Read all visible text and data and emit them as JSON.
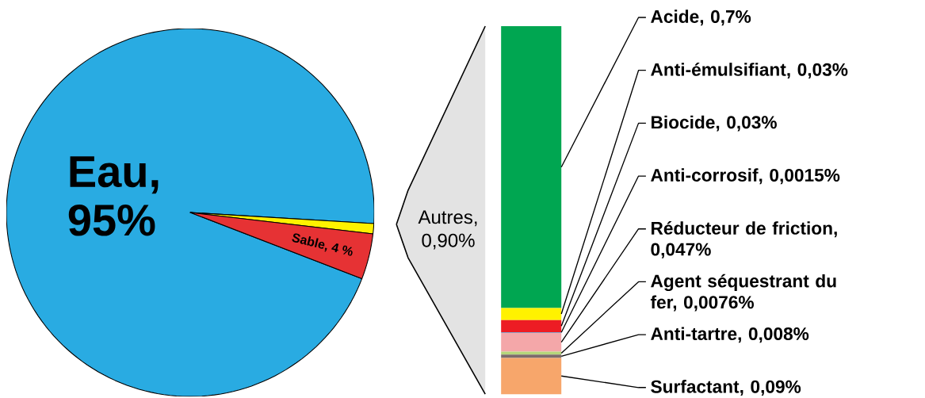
{
  "chart_data": [
    {
      "type": "pie",
      "categories": [
        "Eau, 95%",
        "Autres, 0,90%",
        "Sable, 4 %"
      ],
      "values": [
        95,
        0.9,
        4
      ],
      "colors": [
        "#29abe2",
        "#fff200",
        "#e63234"
      ]
    },
    {
      "type": "bar",
      "stacked": true,
      "categories": [
        null
      ],
      "series": [
        {
          "color": "#f7a66b",
          "values": [
            0.09
          ],
          "value_labels": [
            "Surfactant, 0,09%"
          ]
        },
        {
          "color": "#7d6b6b",
          "values": [
            0.008
          ],
          "value_labels": [
            "Anti-tartre, 0,008%"
          ]
        },
        {
          "color": "#b5d67a",
          "values": [
            0.0076
          ],
          "value_labels": [
            "Agent séquestrant du fer, 0,0076%"
          ]
        },
        {
          "color": "#f4a7a9",
          "values": [
            0.047
          ],
          "value_labels": [
            "Réducteur de friction, 0,047%"
          ]
        },
        {
          "color": "#2e87c8",
          "values": [
            0.0015
          ],
          "value_labels": [
            "Anti-corrosif, 0,0015%"
          ]
        },
        {
          "color": "#ed1c24",
          "values": [
            0.03
          ],
          "value_labels": [
            "Biocide, 0,03%"
          ]
        },
        {
          "color": "#fff200",
          "values": [
            0.03
          ],
          "value_labels": [
            "Anti-émulsifiant, 0,03%"
          ]
        },
        {
          "color": "#00a651",
          "values": [
            0.7
          ],
          "value_labels": [
            "Acide, 0,7%"
          ]
        }
      ]
    }
  ]
}
